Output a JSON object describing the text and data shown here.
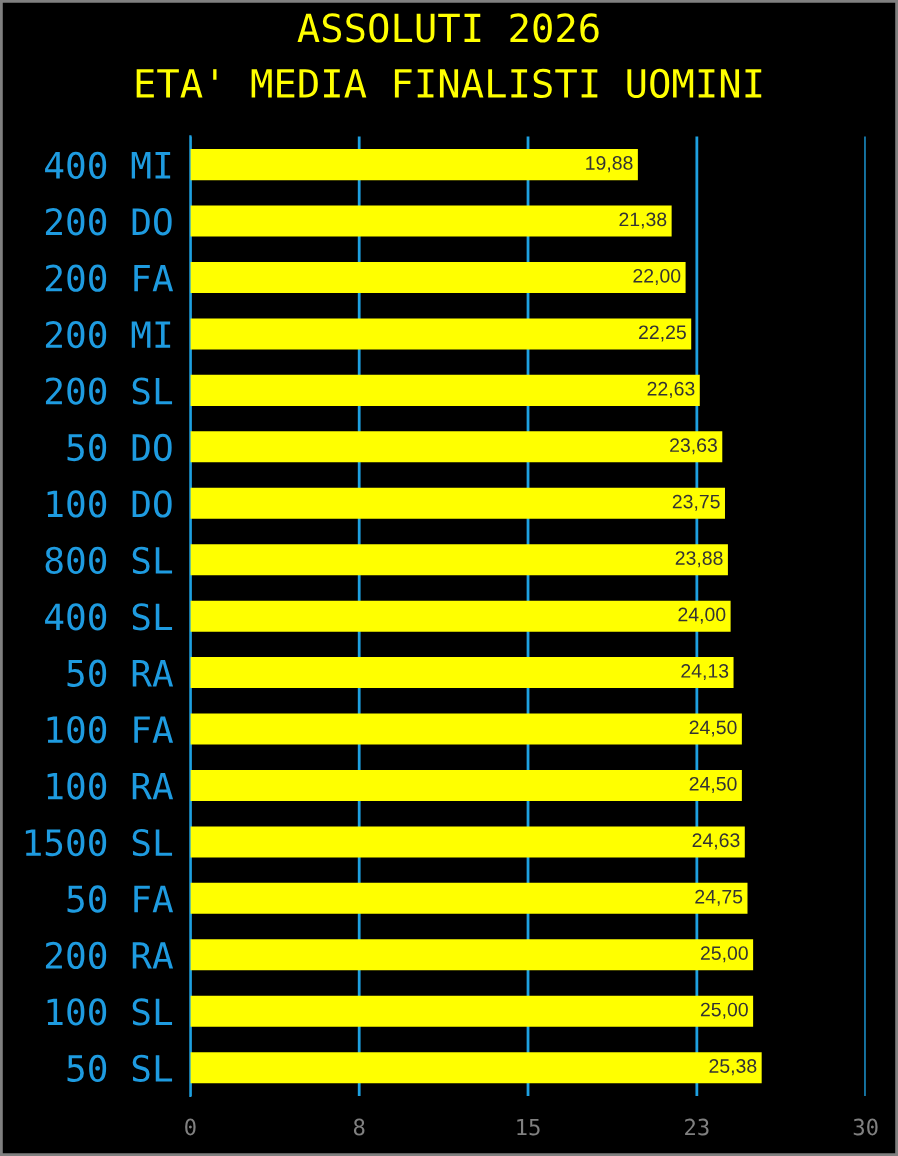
{
  "chart_data": {
    "type": "bar",
    "orientation": "horizontal",
    "title": "ASSOLUTI 2026",
    "subtitle": "ETA' MEDIA FINALISTI UOMINI",
    "categories": [
      "400 MI",
      "200 DO",
      "200 FA",
      "200 MI",
      "200 SL",
      "50 DO",
      "100 DO",
      "800 SL",
      "400 SL",
      "50 RA",
      "100 FA",
      "100 RA",
      "1500 SL",
      "50 FA",
      "200 RA",
      "100 SL",
      "50 SL"
    ],
    "values": [
      19.88,
      21.38,
      22.0,
      22.25,
      22.63,
      23.63,
      23.75,
      23.88,
      24.0,
      24.13,
      24.5,
      24.5,
      24.63,
      24.75,
      25.0,
      25.0,
      25.38
    ],
    "value_labels": [
      "19,88",
      "21,38",
      "22,00",
      "22,25",
      "22,63",
      "23,63",
      "23,75",
      "23,88",
      "24,00",
      "24,13",
      "24,50",
      "24,50",
      "24,63",
      "24,75",
      "25,00",
      "25,00",
      "25,38"
    ],
    "color": "#ffff00",
    "xlim": [
      0,
      30
    ],
    "xticks": [
      0,
      {
        "value": 7.5,
        "label": "8"
      },
      15,
      {
        "value": 22.5,
        "label": "23"
      },
      30
    ],
    "grid": "x",
    "legend": false
  }
}
